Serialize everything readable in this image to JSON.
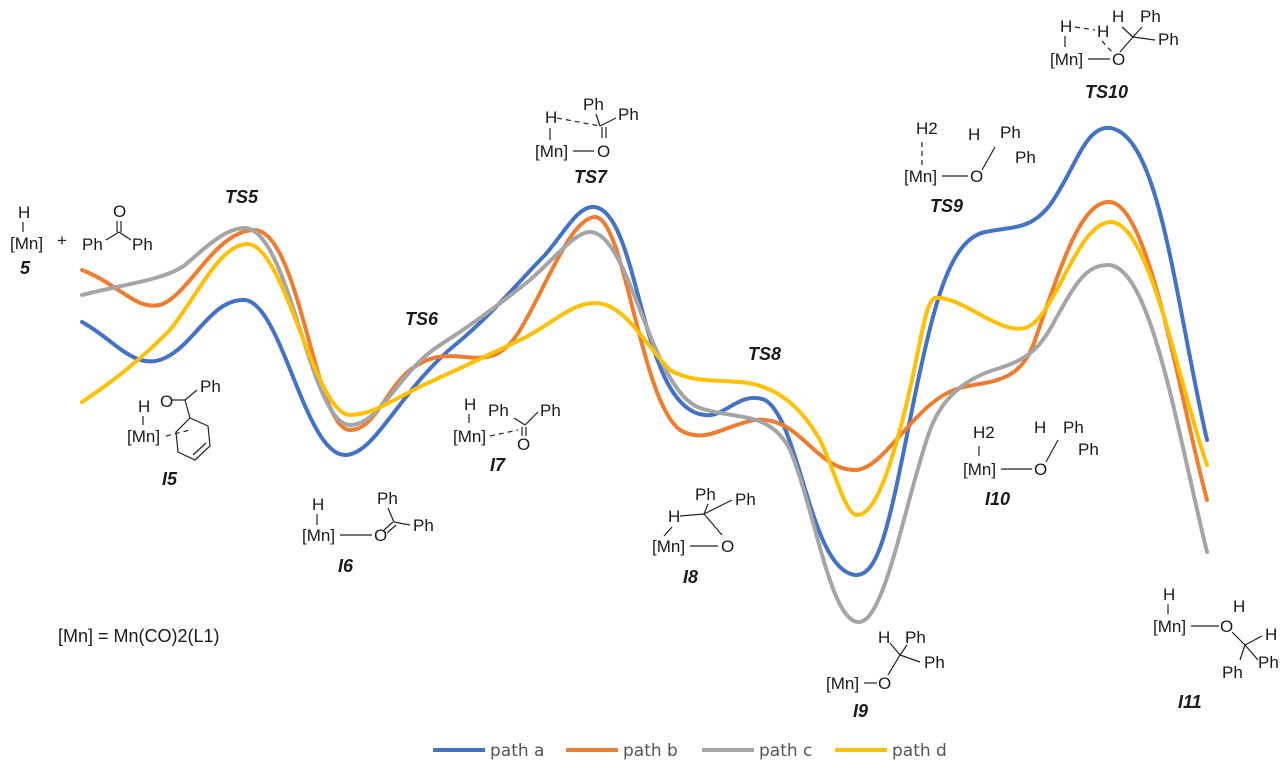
{
  "colors": {
    "path_a": "#4472C4",
    "path_b": "#ED7D31",
    "path_c": "#A5A5A5",
    "path_d": "#FFC000"
  },
  "legend": {
    "path_a": "path a",
    "path_b": "path b",
    "path_c": "path c",
    "path_d": "path d"
  },
  "note": "[Mn] = Mn(CO)2(L1)",
  "species": {
    "s5": "5",
    "TS5": "TS5",
    "I5": "I5",
    "I6": "I6",
    "TS6": "TS6",
    "TS7": "TS7",
    "I7": "I7",
    "I8": "I8",
    "TS8": "TS8",
    "I9": "I9",
    "TS9": "TS9",
    "I10": "I10",
    "TS10": "TS10",
    "I11": "I11"
  },
  "atoms": {
    "H": "H",
    "H2": "H2",
    "O": "O",
    "Ph": "Ph",
    "Mn": "[Mn]",
    "plus": "+"
  }
}
